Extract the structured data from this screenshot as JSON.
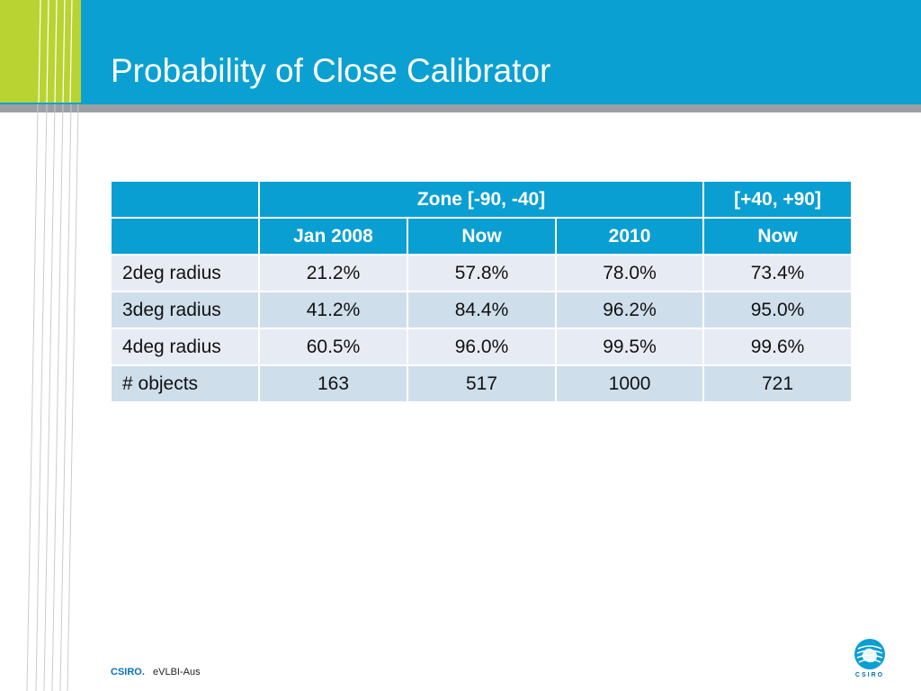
{
  "slide": {
    "title": "Probability of Close Calibrator"
  },
  "table": {
    "header_row_1": [
      "",
      "Zone [-90, -40]",
      "[+40, +90]"
    ],
    "header_row_2": [
      "",
      "Jan 2008",
      "Now",
      "2010",
      "Now"
    ],
    "rows": [
      [
        "2deg radius",
        "21.2%",
        "57.8%",
        "78.0%",
        "73.4%"
      ],
      [
        "3deg radius",
        "41.2%",
        "84.4%",
        "96.2%",
        "95.0%"
      ],
      [
        "4deg radius",
        "60.5%",
        "96.0%",
        "99.5%",
        "99.6%"
      ],
      [
        "# objects",
        "163",
        "517",
        "1000",
        "721"
      ]
    ]
  },
  "footer": {
    "brand": "CSIRO.",
    "text": "eVLBI-Aus",
    "logo_text": "CSIRO",
    "logo_icon": "csiro-logo-icon"
  },
  "colors": {
    "header_blue": "#0aa0d2",
    "accent_lime": "#b9d332",
    "table_header": "#0a9fd2",
    "row_light": "#e7ecf4",
    "row_dark": "#cfdeeb"
  }
}
